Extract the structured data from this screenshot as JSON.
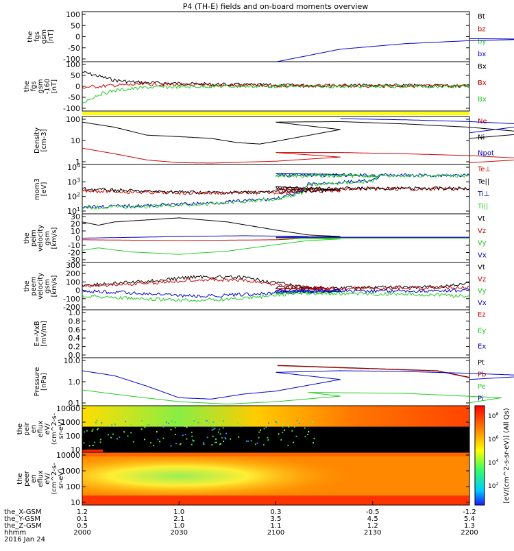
{
  "title": "P4 (TH-E) fields and on-board moments overview",
  "x_axis": {
    "rows": [
      {
        "label": "the_X-GSM",
        "values": [
          "1.2",
          "1.0",
          "0.3",
          "-0.5",
          "-1.2"
        ]
      },
      {
        "label": "the_Y-GSM",
        "values": [
          "0.1",
          "2.1",
          "3.5",
          "4.5",
          "5.4"
        ]
      },
      {
        "label": "the_Z-GSM",
        "values": [
          "0.5",
          "1.0",
          "1.1",
          "1.2",
          "1.3"
        ]
      },
      {
        "label": "hhmm",
        "values": [
          "2000",
          "2030",
          "2100",
          "2130",
          "2200"
        ]
      }
    ],
    "date": "2016 Jan 24"
  },
  "colorbar": {
    "label": "[eV/(cm^2-s-sr-eV)] (All Qs)",
    "ticks": [
      "10^8",
      "10^6",
      "10^4",
      "10^2"
    ]
  },
  "chart_data": [
    {
      "type": "line",
      "panel": "fgs",
      "ylabel": [
        "the",
        "fgs",
        "gsm",
        "[nT]"
      ],
      "yticks": [
        "100",
        "50",
        "0",
        "-50",
        "-100"
      ],
      "ylim": [
        -100,
        100
      ],
      "series": [
        {
          "name": "Bt",
          "color": "#000000",
          "values": []
        },
        {
          "name": "bz",
          "color": "#cc0000",
          "values": []
        },
        {
          "name": "by",
          "color": "#22cc22",
          "values": []
        },
        {
          "name": "bx",
          "color": "#0000cc",
          "x": [
            2100.3,
            2120,
            2140,
            2160,
            2180,
            2200
          ],
          "values": [
            -100,
            -50,
            -28,
            -16,
            -10,
            -8
          ]
        }
      ]
    },
    {
      "type": "line",
      "panel": "fgs-dsl",
      "ylabel": [
        "the",
        "fgs",
        "gsm",
        "-160",
        "[nT]"
      ],
      "yticks": [
        "100",
        "50",
        "0",
        "-50",
        "-100"
      ],
      "ylim": [
        -120,
        120
      ],
      "series": [
        {
          "name": "Bx",
          "color": "#000000",
          "x": [
            2000,
            2005,
            2010,
            2015,
            2020,
            2040,
            2100,
            2200
          ],
          "values": [
            70,
            50,
            30,
            22,
            18,
            10,
            5,
            3
          ]
        },
        {
          "name": "Bx",
          "color": "#cc0000",
          "x": [
            2000,
            2010,
            2020,
            2040,
            2100,
            2200
          ],
          "values": [
            -5,
            5,
            10,
            5,
            2,
            2
          ]
        },
        {
          "name": "Bx",
          "color": "#22cc22",
          "x": [
            2000,
            2005,
            2010,
            2020,
            2040,
            2100,
            2200
          ],
          "values": [
            -80,
            -40,
            -20,
            -5,
            0,
            0,
            0
          ]
        }
      ]
    },
    {
      "type": "line",
      "panel": "density",
      "ylabel": [
        "Density",
        "[cm-3]"
      ],
      "yticks": [
        "100",
        "10",
        "1"
      ],
      "ylim_log": [
        0.8,
        300
      ],
      "series": [
        {
          "name": "Ne",
          "color": "#cc0000",
          "x": [
            2000,
            2010,
            2020,
            2030,
            2040,
            2060,
            2080,
            2100,
            2120,
            2140,
            2160,
            2180,
            2200
          ],
          "values": [
            6,
            3,
            1.4,
            1,
            0.95,
            1.2,
            2,
            3.5,
            3.5,
            3,
            2.4,
            1.6,
            1
          ]
        },
        {
          "name": "Ni",
          "color": "#000000",
          "x": [
            2000,
            2010,
            2020,
            2030,
            2040,
            2048,
            2055,
            2060,
            2080,
            2100,
            2120,
            2140,
            2160,
            2180,
            2200
          ],
          "values": [
            150,
            80,
            30,
            25,
            20,
            12,
            10,
            14,
            60,
            150,
            160,
            120,
            80,
            40,
            20
          ]
        },
        {
          "name": "Npot",
          "color": "#0000cc",
          "x": [
            2120,
            2140,
            2160,
            2180,
            2200
          ],
          "values": [
            230,
            200,
            160,
            110,
            40
          ]
        }
      ]
    },
    {
      "type": "line",
      "panel": "moms",
      "ylabel": [
        "mom3",
        "[eV]"
      ],
      "yticks": [
        "10^4",
        "10^3",
        "10^2",
        "10^1"
      ],
      "ylim_log": [
        3,
        50000
      ],
      "series": [
        {
          "name": "Te⊥",
          "color": "#cc0000",
          "x": [
            2000,
            2020,
            2040,
            2060,
            2080,
            2100,
            2150,
            2200
          ],
          "values": [
            300,
            200,
            180,
            200,
            300,
            400,
            400,
            400
          ]
        },
        {
          "name": "Te||",
          "color": "#000000",
          "x": [
            2000,
            2020,
            2040,
            2060,
            2080,
            2100,
            2150,
            2200
          ],
          "values": [
            400,
            250,
            200,
            220,
            320,
            450,
            450,
            450
          ]
        },
        {
          "name": "Ti⊥",
          "color": "#0000cc",
          "x": [
            2000,
            2020,
            2040,
            2060,
            2068,
            2070,
            2080,
            2090,
            2092,
            2100,
            2150,
            2200
          ],
          "values": [
            12,
            15,
            25,
            60,
            200,
            1000,
            1500,
            2000,
            5000,
            6000,
            6000,
            6000
          ]
        },
        {
          "name": "Ti||",
          "color": "#22cc22",
          "x": [
            2000,
            2020,
            2040,
            2060,
            2068,
            2070,
            2080,
            2090,
            2092,
            2100,
            2150,
            2200
          ],
          "values": [
            10,
            13,
            22,
            55,
            180,
            900,
            1300,
            1800,
            4500,
            5500,
            5500,
            5500
          ]
        }
      ]
    },
    {
      "type": "line",
      "panel": "peim-velocity",
      "ylabel": [
        "the",
        "peim",
        "velocity",
        "gsm",
        "[km/s]"
      ],
      "yticks": [
        "30",
        "20",
        "10",
        "0",
        "-10",
        "-20",
        "-30"
      ],
      "ylim": [
        -30,
        30
      ],
      "series": [
        {
          "name": "Vt",
          "color": "#000000",
          "x": [
            2000,
            2005,
            2010,
            2030,
            2045,
            2060,
            2070,
            2080,
            2100,
            2200
          ],
          "values": [
            20,
            16,
            20,
            25,
            20,
            10,
            4,
            2,
            1,
            1
          ]
        },
        {
          "name": "Vz",
          "color": "#cc0000",
          "x": [
            2000,
            2030,
            2060,
            2070,
            2100,
            2200
          ],
          "values": [
            -2,
            -3,
            -2,
            0,
            0,
            0
          ]
        },
        {
          "name": "Vy",
          "color": "#22cc22",
          "x": [
            2000,
            2005,
            2015,
            2030,
            2045,
            2060,
            2070,
            2080,
            2100,
            2200
          ],
          "values": [
            -15,
            -12,
            -17,
            -20,
            -16,
            -8,
            -3,
            -1,
            0,
            0
          ]
        },
        {
          "name": "Vx",
          "color": "#0000cc",
          "x": [
            2000,
            2030,
            2050,
            2070,
            2100,
            2200
          ],
          "values": [
            0,
            2,
            3,
            2,
            1,
            1
          ]
        }
      ]
    },
    {
      "type": "line",
      "panel": "peem-velocity",
      "ylabel": [
        "the",
        "peem",
        "velocity",
        "gsm",
        "[km/s]"
      ],
      "yticks": [
        "300",
        "200",
        "100",
        "0",
        "-100",
        "-200"
      ],
      "ylim": [
        -200,
        300
      ],
      "series": [
        {
          "name": "Vt",
          "color": "#000000",
          "x": [
            2000,
            2020,
            2035,
            2050,
            2065,
            2075,
            2100,
            2150,
            2200
          ],
          "values": [
            60,
            100,
            150,
            140,
            60,
            20,
            30,
            40,
            80
          ]
        },
        {
          "name": "Vz",
          "color": "#cc0000",
          "x": [
            2000,
            2020,
            2035,
            2050,
            2065,
            2080,
            2100,
            2150,
            2200
          ],
          "values": [
            50,
            80,
            120,
            110,
            50,
            10,
            20,
            30,
            40
          ]
        },
        {
          "name": "Vy",
          "color": "#22cc22",
          "x": [
            2000,
            2020,
            2035,
            2050,
            2065,
            2080,
            2100,
            2150,
            2200
          ],
          "values": [
            -50,
            -90,
            -100,
            -80,
            -30,
            -5,
            -20,
            -40,
            -60
          ]
        },
        {
          "name": "Vx",
          "color": "#0000cc",
          "x": [
            2000,
            2020,
            2035,
            2050,
            2065,
            2080,
            2100,
            2150,
            2200
          ],
          "values": [
            0,
            -30,
            -60,
            -40,
            -10,
            0,
            0,
            0,
            10
          ]
        }
      ]
    },
    {
      "type": "line",
      "panel": "efield",
      "ylabel": [
        "E=-VxB",
        "[mV/m]"
      ],
      "yticks": [
        "1.0",
        "0.8",
        "0.6",
        "0.4",
        "0.2",
        "0.0"
      ],
      "ylim": [
        -0.05,
        1.0
      ],
      "series": [
        {
          "name": "Ez",
          "color": "#cc0000",
          "values": []
        },
        {
          "name": "Ey",
          "color": "#22cc22",
          "values": []
        },
        {
          "name": "Ex",
          "color": "#0000cc",
          "values": []
        }
      ]
    },
    {
      "type": "line",
      "panel": "pressure",
      "ylabel": [
        "Pressure",
        "[nPa]"
      ],
      "yticks": [
        "10.0",
        "1.0",
        "0.1"
      ],
      "ylim_log": [
        0.04,
        30
      ],
      "series": [
        {
          "name": "Pt",
          "color": "#000000",
          "x": [
            2100.5,
            2150,
            2200
          ],
          "values": [
            10.5,
            5,
            2
          ]
        },
        {
          "name": "Pb",
          "color": "#cc0000",
          "x": [
            2100.5,
            2150,
            2200
          ],
          "values": [
            10,
            4.8,
            1.9
          ]
        },
        {
          "name": "Pe",
          "color": "#22cc22",
          "x": [
            2000,
            2015,
            2030,
            2045,
            2060,
            2080,
            2110,
            2140,
            2170,
            2200
          ],
          "values": [
            0.35,
            0.15,
            0.07,
            0.05,
            0.07,
            0.15,
            0.25,
            0.22,
            0.12,
            0.06
          ]
        },
        {
          "name": "Pi",
          "color": "#0000cc",
          "x": [
            2000,
            2010,
            2020,
            2030,
            2040,
            2050,
            2060,
            2080,
            2100,
            2120,
            2140,
            2160,
            2180,
            2200
          ],
          "values": [
            5,
            2.5,
            0.6,
            0.12,
            0.1,
            0.2,
            0.3,
            1.5,
            4,
            5,
            4.5,
            3.5,
            2.5,
            1.5
          ]
        }
      ]
    },
    {
      "type": "heatmap",
      "panel": "peir-eflux",
      "ylabel": [
        "the",
        "peir",
        "en",
        "eflux",
        "eV/",
        "(cm^2-s-",
        "sr-eV)"
      ],
      "yticks": [
        "10000",
        "1000",
        "100",
        "10"
      ]
    },
    {
      "type": "heatmap",
      "panel": "peer-eflux",
      "ylabel": [
        "the",
        "peer",
        "en",
        "eflux",
        "eV/",
        "(cm^2-s-",
        "sr-eV)"
      ],
      "yticks": [
        "10000",
        "1000",
        "100",
        "10"
      ]
    }
  ]
}
